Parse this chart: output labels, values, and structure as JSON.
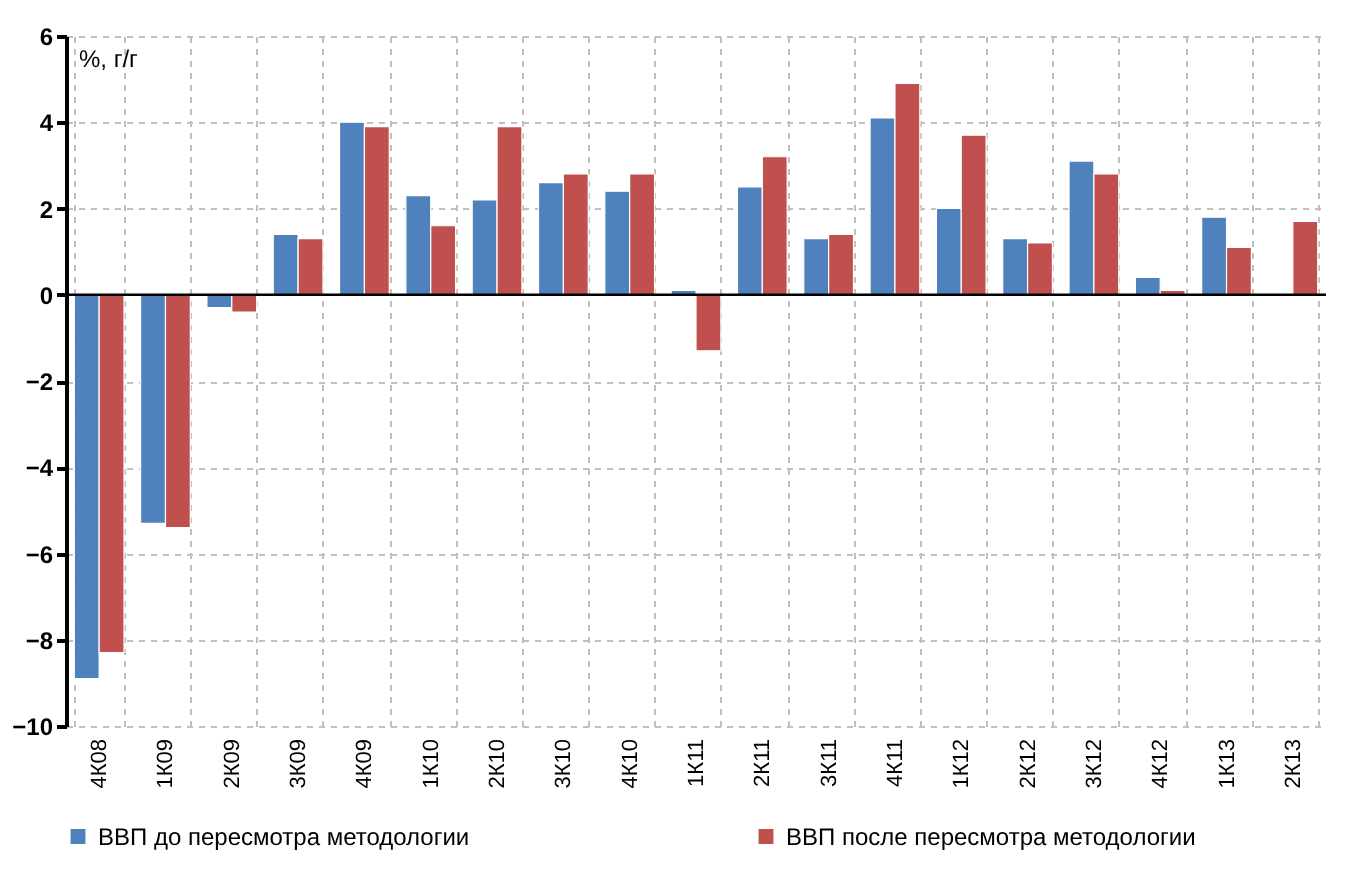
{
  "chart_data": {
    "type": "bar",
    "ylabel": "%, г/г",
    "categories": [
      "4К08",
      "1К09",
      "2К09",
      "3К09",
      "4К09",
      "1К10",
      "2К10",
      "3К10",
      "4К10",
      "1К11",
      "2К11",
      "3К11",
      "4К11",
      "1К12",
      "2К12",
      "3К12",
      "4К12",
      "1К13",
      "2К13"
    ],
    "series": [
      {
        "name": "ВВП до пересмотра методологии",
        "color": "#4f81bd",
        "values": [
          -8.9,
          -5.3,
          -0.3,
          1.4,
          4.0,
          2.3,
          2.2,
          2.6,
          2.4,
          0.1,
          2.5,
          1.3,
          4.1,
          2.0,
          1.3,
          3.1,
          0.4,
          1.8,
          null
        ]
      },
      {
        "name": "ВВП после пересмотра методологии",
        "color": "#c0504d",
        "values": [
          -8.3,
          -5.4,
          -0.4,
          1.3,
          3.9,
          1.6,
          3.9,
          2.8,
          2.8,
          -1.3,
          3.2,
          1.4,
          4.9,
          3.7,
          1.2,
          2.8,
          0.1,
          1.1,
          1.7
        ]
      }
    ],
    "ylim": [
      -10,
      6
    ],
    "yticks": [
      -10,
      -8,
      -6,
      -4,
      -2,
      0,
      2,
      4,
      6
    ],
    "grid": true,
    "legend": "bottom"
  }
}
